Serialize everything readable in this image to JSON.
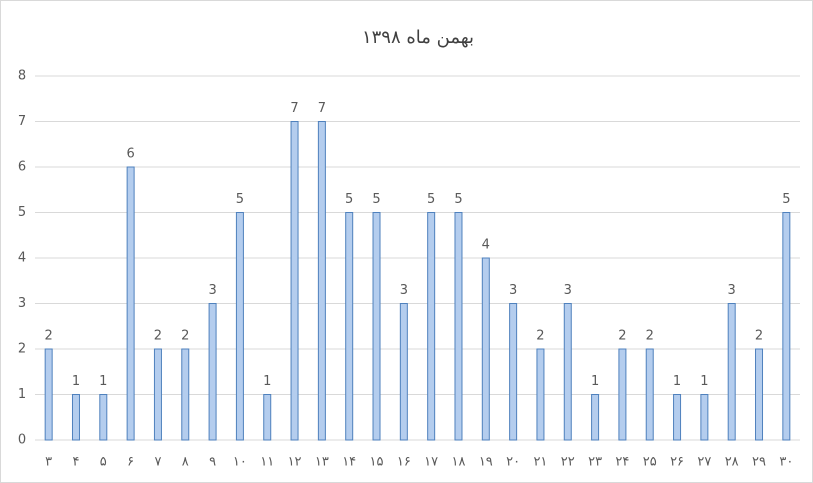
{
  "chart_data": {
    "type": "bar",
    "title": "بهمن ماه ۱۳۹۸",
    "categories": [
      "۳",
      "۴",
      "۵",
      "۶",
      "۷",
      "۸",
      "۹",
      "۱۰",
      "۱۱",
      "۱۲",
      "۱۳",
      "۱۴",
      "۱۵",
      "۱۶",
      "۱۷",
      "۱۸",
      "۱۹",
      "۲۰",
      "۲۱",
      "۲۲",
      "۲۳",
      "۲۴",
      "۲۵",
      "۲۶",
      "۲۷",
      "۲۸",
      "۲۹",
      "۳۰"
    ],
    "values": [
      2,
      1,
      1,
      6,
      2,
      2,
      3,
      5,
      1,
      7,
      7,
      5,
      5,
      3,
      5,
      5,
      4,
      3,
      2,
      3,
      1,
      2,
      2,
      1,
      1,
      3,
      2,
      5
    ],
    "color": "#b4cdee",
    "edge_color": "#4f81bd",
    "ylim": [
      0,
      8
    ],
    "yticks": [
      0,
      1,
      2,
      3,
      4,
      5,
      6,
      7,
      8
    ],
    "grid": true
  }
}
